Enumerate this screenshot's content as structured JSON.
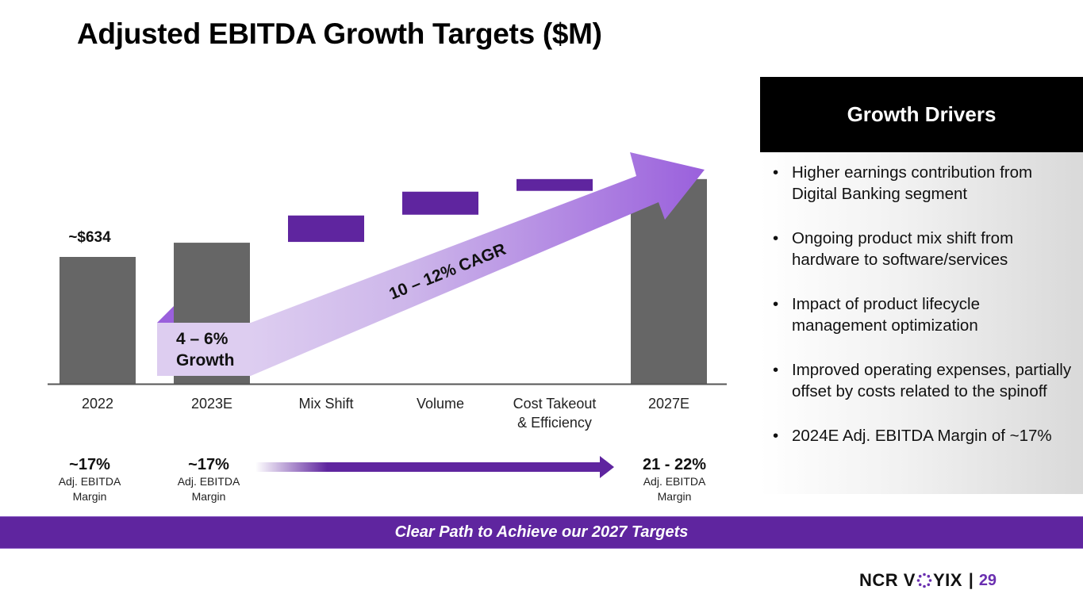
{
  "slide": {
    "title": "Adjusted EBITDA Growth Targets ($M)",
    "page_number": "29",
    "brand": {
      "left": "NCR V",
      "right": "YIX",
      "separator": "|",
      "accent": "#6a2fb0"
    }
  },
  "chart_data": {
    "type": "waterfall",
    "title": "Adjusted EBITDA Growth Targets ($M)",
    "xlabel": "",
    "ylabel": "",
    "ylim": [
      0,
      1100
    ],
    "grid": false,
    "categories": [
      "2022",
      "2023E",
      "Mix Shift",
      "Volume",
      "Cost Takeout & Efficiency",
      "2027E"
    ],
    "category_lines": [
      [
        "2022"
      ],
      [
        "2023E"
      ],
      [
        "Mix Shift"
      ],
      [
        "Volume"
      ],
      [
        "Cost Takeout",
        "& Efficiency"
      ],
      [
        "2027E"
      ]
    ],
    "bars": [
      {
        "category": "2022",
        "kind": "total",
        "value": 634,
        "label": "~$634",
        "color": "#666666"
      },
      {
        "category": "2023E",
        "kind": "total",
        "value": 705,
        "label": "",
        "color": "#666666"
      },
      {
        "category": "Mix Shift",
        "kind": "increment",
        "start": 705,
        "value": 136,
        "label": "",
        "color": "#5f259f"
      },
      {
        "category": "Volume",
        "kind": "increment",
        "start": 841,
        "value": 119,
        "label": "",
        "color": "#5f259f"
      },
      {
        "category": "Cost Takeout & Efficiency",
        "kind": "increment",
        "start": 960,
        "value": 63,
        "label": "",
        "color": "#5f259f"
      },
      {
        "category": "2027E",
        "kind": "total",
        "value": 1023,
        "label": "",
        "color": "#666666"
      }
    ],
    "annotations": {
      "short_term_growth": [
        "4 – 6%",
        "Growth"
      ],
      "cagr": "10 – 12% CAGR"
    },
    "colors": {
      "total": "#666666",
      "increment": "#5f259f",
      "arrow_light": "#ddcdf0",
      "arrow_dark": "#9a60dc",
      "axis": "#555555"
    }
  },
  "margins": [
    {
      "value": "~17%",
      "label_lines": [
        "Adj. EBITDA",
        "Margin"
      ]
    },
    {
      "value": "~17%",
      "label_lines": [
        "Adj. EBITDA",
        "Margin"
      ]
    },
    {
      "value": "21 - 22%",
      "label_lines": [
        "Adj. EBITDA",
        "Margin"
      ]
    }
  ],
  "drivers": {
    "title": "Growth Drivers",
    "items": [
      "Higher earnings contribution from Digital Banking segment",
      "Ongoing product mix shift from hardware to software/services",
      "Impact of product lifecycle management optimization",
      "Improved operating expenses, partially offset by costs related to the spinoff",
      "2024E Adj. EBITDA Margin of ~17%"
    ],
    "bullet": "•"
  },
  "banner": {
    "text": "Clear Path to Achieve our 2027 Targets",
    "color": "#5f259f"
  }
}
